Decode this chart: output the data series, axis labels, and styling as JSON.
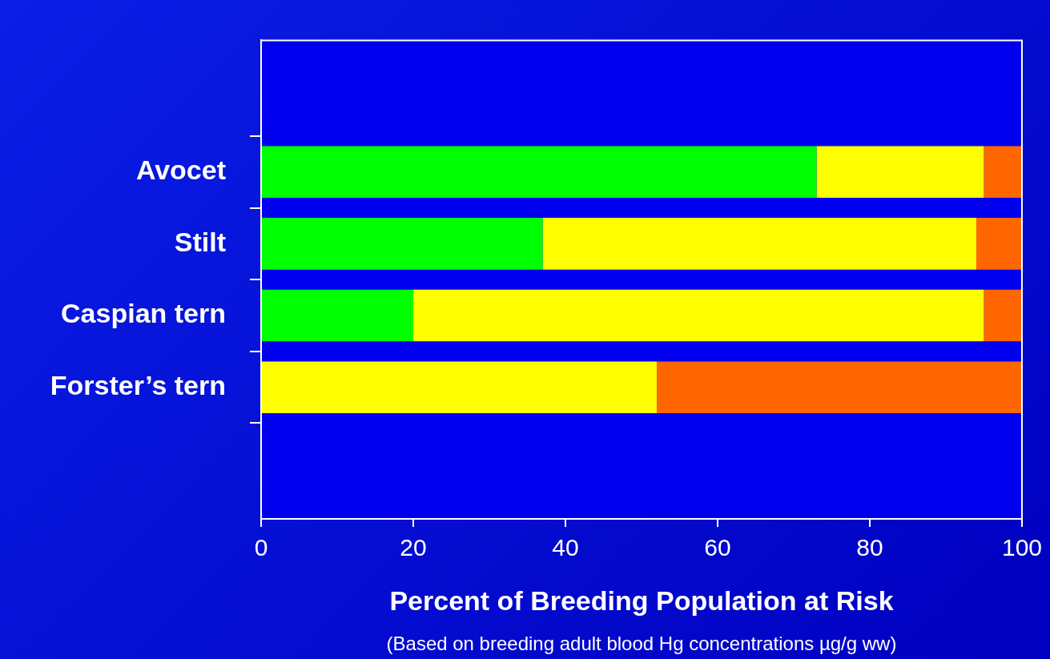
{
  "chart_data": {
    "type": "bar",
    "orientation": "horizontal",
    "stacked": true,
    "xlabel": "Percent of Breeding Population at Risk",
    "annotations": [
      "(Based on breeding adult blood Hg concentrations µg/g ww)"
    ],
    "categories": [
      "Avocet",
      "Stilt",
      "Caspian tern",
      "Forster’s tern"
    ],
    "series": [
      {
        "color": "#00ff00",
        "values": [
          73,
          37,
          20,
          0
        ]
      },
      {
        "color": "#ffff00",
        "values": [
          22,
          57,
          75,
          52
        ]
      },
      {
        "color": "#ff6600",
        "values": [
          5,
          6,
          5,
          48
        ]
      }
    ],
    "xlim": [
      0,
      100
    ],
    "xticks": [
      0,
      20,
      40,
      60,
      80,
      100
    ],
    "grid": false,
    "legend": false
  }
}
